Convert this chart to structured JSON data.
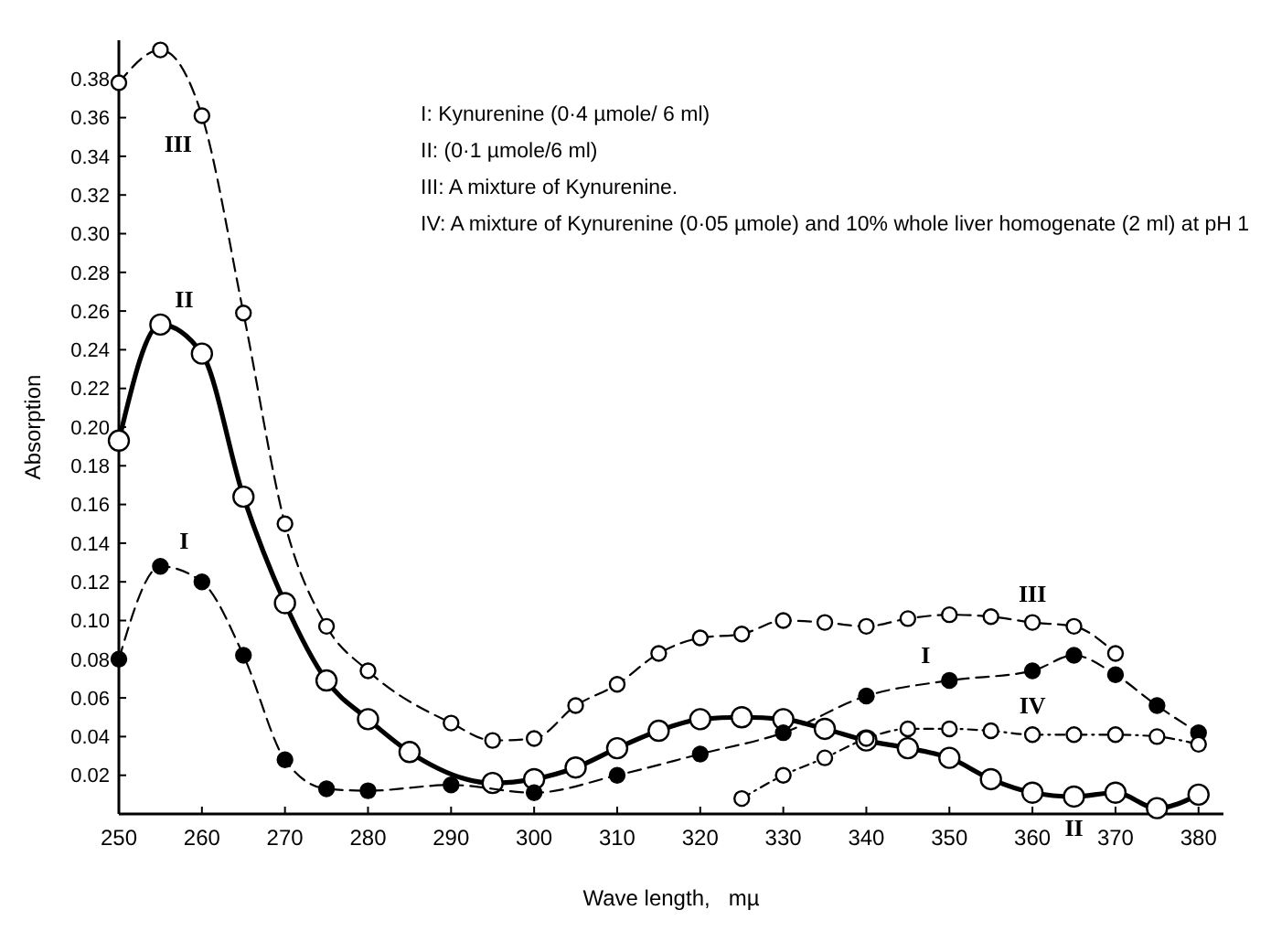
{
  "chart_data": {
    "type": "line",
    "xlabel": "Wave length,   mµ",
    "ylabel": "Absorption",
    "xlim": [
      250,
      383
    ],
    "ylim": [
      0,
      0.4
    ],
    "xticks": [
      250,
      260,
      270,
      280,
      290,
      300,
      310,
      320,
      330,
      340,
      350,
      360,
      370,
      380
    ],
    "yticks": [
      0.02,
      0.04,
      0.06,
      0.08,
      {
        "value": 0.1,
        "label": "0.10"
      },
      0.12,
      0.14,
      0.16,
      0.18,
      {
        "value": 0.2,
        "label": "0.20"
      },
      0.22,
      0.24,
      0.26,
      0.28,
      {
        "value": 0.3,
        "label": "0.30"
      },
      0.32,
      0.34,
      0.36,
      0.38
    ],
    "grid": false,
    "marker": "circle",
    "series": [
      {
        "color": "#000000",
        "line_style": "dashed",
        "x": [
          250,
          255,
          260,
          265,
          270,
          275,
          280,
          290,
          300,
          310,
          320,
          330,
          340,
          350,
          360,
          365,
          370,
          375,
          380
        ],
        "values": [
          0.08,
          0.128,
          0.12,
          0.082,
          0.028,
          0.013,
          0.012,
          0.015,
          0.011,
          0.02,
          0.031,
          0.042,
          0.061,
          0.069,
          0.074,
          0.082,
          0.072,
          0.056,
          0.042
        ]
      },
      {
        "color": "#000000",
        "line_style": "solid",
        "x": [
          250,
          255,
          260,
          265,
          270,
          275,
          280,
          285,
          295,
          300,
          305,
          310,
          315,
          320,
          325,
          330,
          335,
          340,
          345,
          350,
          355,
          360,
          365,
          370,
          375,
          380
        ],
        "values": [
          0.193,
          0.253,
          0.238,
          0.164,
          0.109,
          0.069,
          0.049,
          0.032,
          0.016,
          0.018,
          0.024,
          0.034,
          0.043,
          0.049,
          0.05,
          0.049,
          0.044,
          0.038,
          0.034,
          0.029,
          0.018,
          0.011,
          0.009,
          0.011,
          0.003,
          0.01
        ]
      },
      {
        "color": "#000000",
        "line_style": "dashed",
        "x": [
          250,
          255,
          260,
          265,
          270,
          275,
          280,
          290,
          295,
          300,
          305,
          310,
          315,
          320,
          325,
          330,
          335,
          340,
          345,
          350,
          355,
          360,
          365,
          370
        ],
        "values": [
          0.378,
          0.395,
          0.361,
          0.259,
          0.15,
          0.097,
          0.074,
          0.047,
          0.038,
          0.039,
          0.056,
          0.067,
          0.083,
          0.091,
          0.093,
          0.1,
          0.099,
          0.097,
          0.101,
          0.103,
          0.102,
          0.099,
          0.097,
          0.083
        ]
      },
      {
        "color": "#000000",
        "line_style": "dotted",
        "x": [
          325,
          330,
          335,
          340,
          345,
          350,
          355,
          360,
          365,
          370,
          375,
          380
        ],
        "values": [
          0.008,
          0.02,
          0.029,
          0.039,
          0.044,
          0.044,
          0.043,
          0.041,
          0.041,
          0.041,
          0.04,
          0.036
        ]
      }
    ],
    "annotations": [
      "I: Kynurenine (0·4 µmole/ 6 ml)",
      "II: (0·1 µmole/6 ml)",
      "III: A mixture of Kynurenine.",
      "IV: A mixture of Kynurenine (0·05 µmole) and 10% whole liver homogenate (2 ml) at pH 1",
      {
        "text": "III",
        "x": 260,
        "y": 0.361
      },
      {
        "text": "III",
        "x": 360,
        "y": 0.099
      },
      {
        "text": "II",
        "x": 255,
        "y": 0.253
      },
      {
        "text": "II",
        "x": 365,
        "y": 0.009
      },
      {
        "text": "I",
        "x": 255,
        "y": 0.128
      },
      {
        "text": "I",
        "x": 350,
        "y": 0.069
      },
      {
        "text": "IV",
        "x": 360,
        "y": 0.041
      }
    ]
  }
}
